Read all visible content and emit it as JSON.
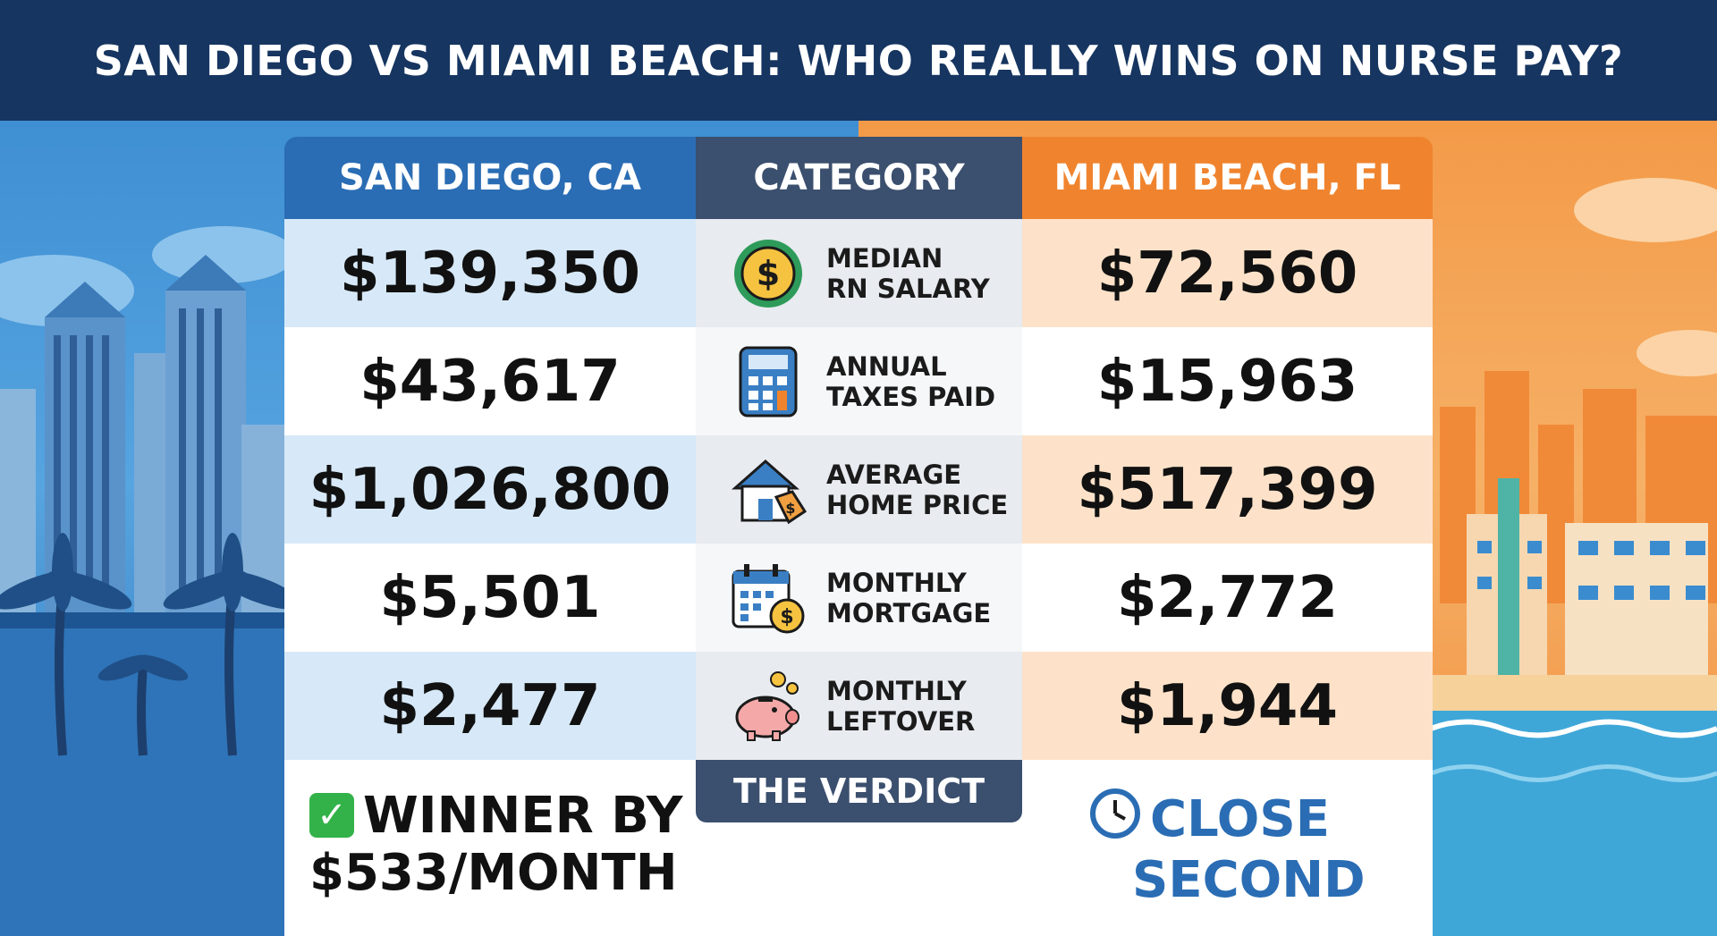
{
  "title": "SAN DIEGO VS MIAMI BEACH: WHO REALLY WINS ON NURSE PAY?",
  "columns": {
    "left": "SAN DIEGO, CA",
    "middle": "CATEGORY",
    "right": "MIAMI BEACH, FL"
  },
  "rows": [
    {
      "category_line1": "MEDIAN",
      "category_line2": "RN SALARY",
      "icon": "dollar-coin-icon",
      "san_diego": "$139,350",
      "miami_beach": "$72,560"
    },
    {
      "category_line1": "ANNUAL",
      "category_line2": "TAXES PAID",
      "icon": "calculator-icon",
      "san_diego": "$43,617",
      "miami_beach": "$15,963"
    },
    {
      "category_line1": "AVERAGE",
      "category_line2": "HOME PRICE",
      "icon": "house-price-tag-icon",
      "san_diego": "$1,026,800",
      "miami_beach": "$517,399"
    },
    {
      "category_line1": "MONTHLY",
      "category_line2": "MORTGAGE",
      "icon": "calendar-dollar-icon",
      "san_diego": "$5,501",
      "miami_beach": "$2,772"
    },
    {
      "category_line1": "MONTHLY",
      "category_line2": "LEFTOVER",
      "icon": "piggy-bank-icon",
      "san_diego": "$2,477",
      "miami_beach": "$1,944"
    }
  ],
  "verdict": {
    "label": "THE VERDICT",
    "left_line1": "WINNER BY",
    "left_line2": "$533/MONTH",
    "right_line1": "CLOSE",
    "right_line2": "SECOND"
  },
  "colors": {
    "navy": "#163560",
    "blue": "#2a6db4",
    "orange": "#f0842e",
    "slate": "#3b4f6e",
    "green": "#34b24a"
  }
}
